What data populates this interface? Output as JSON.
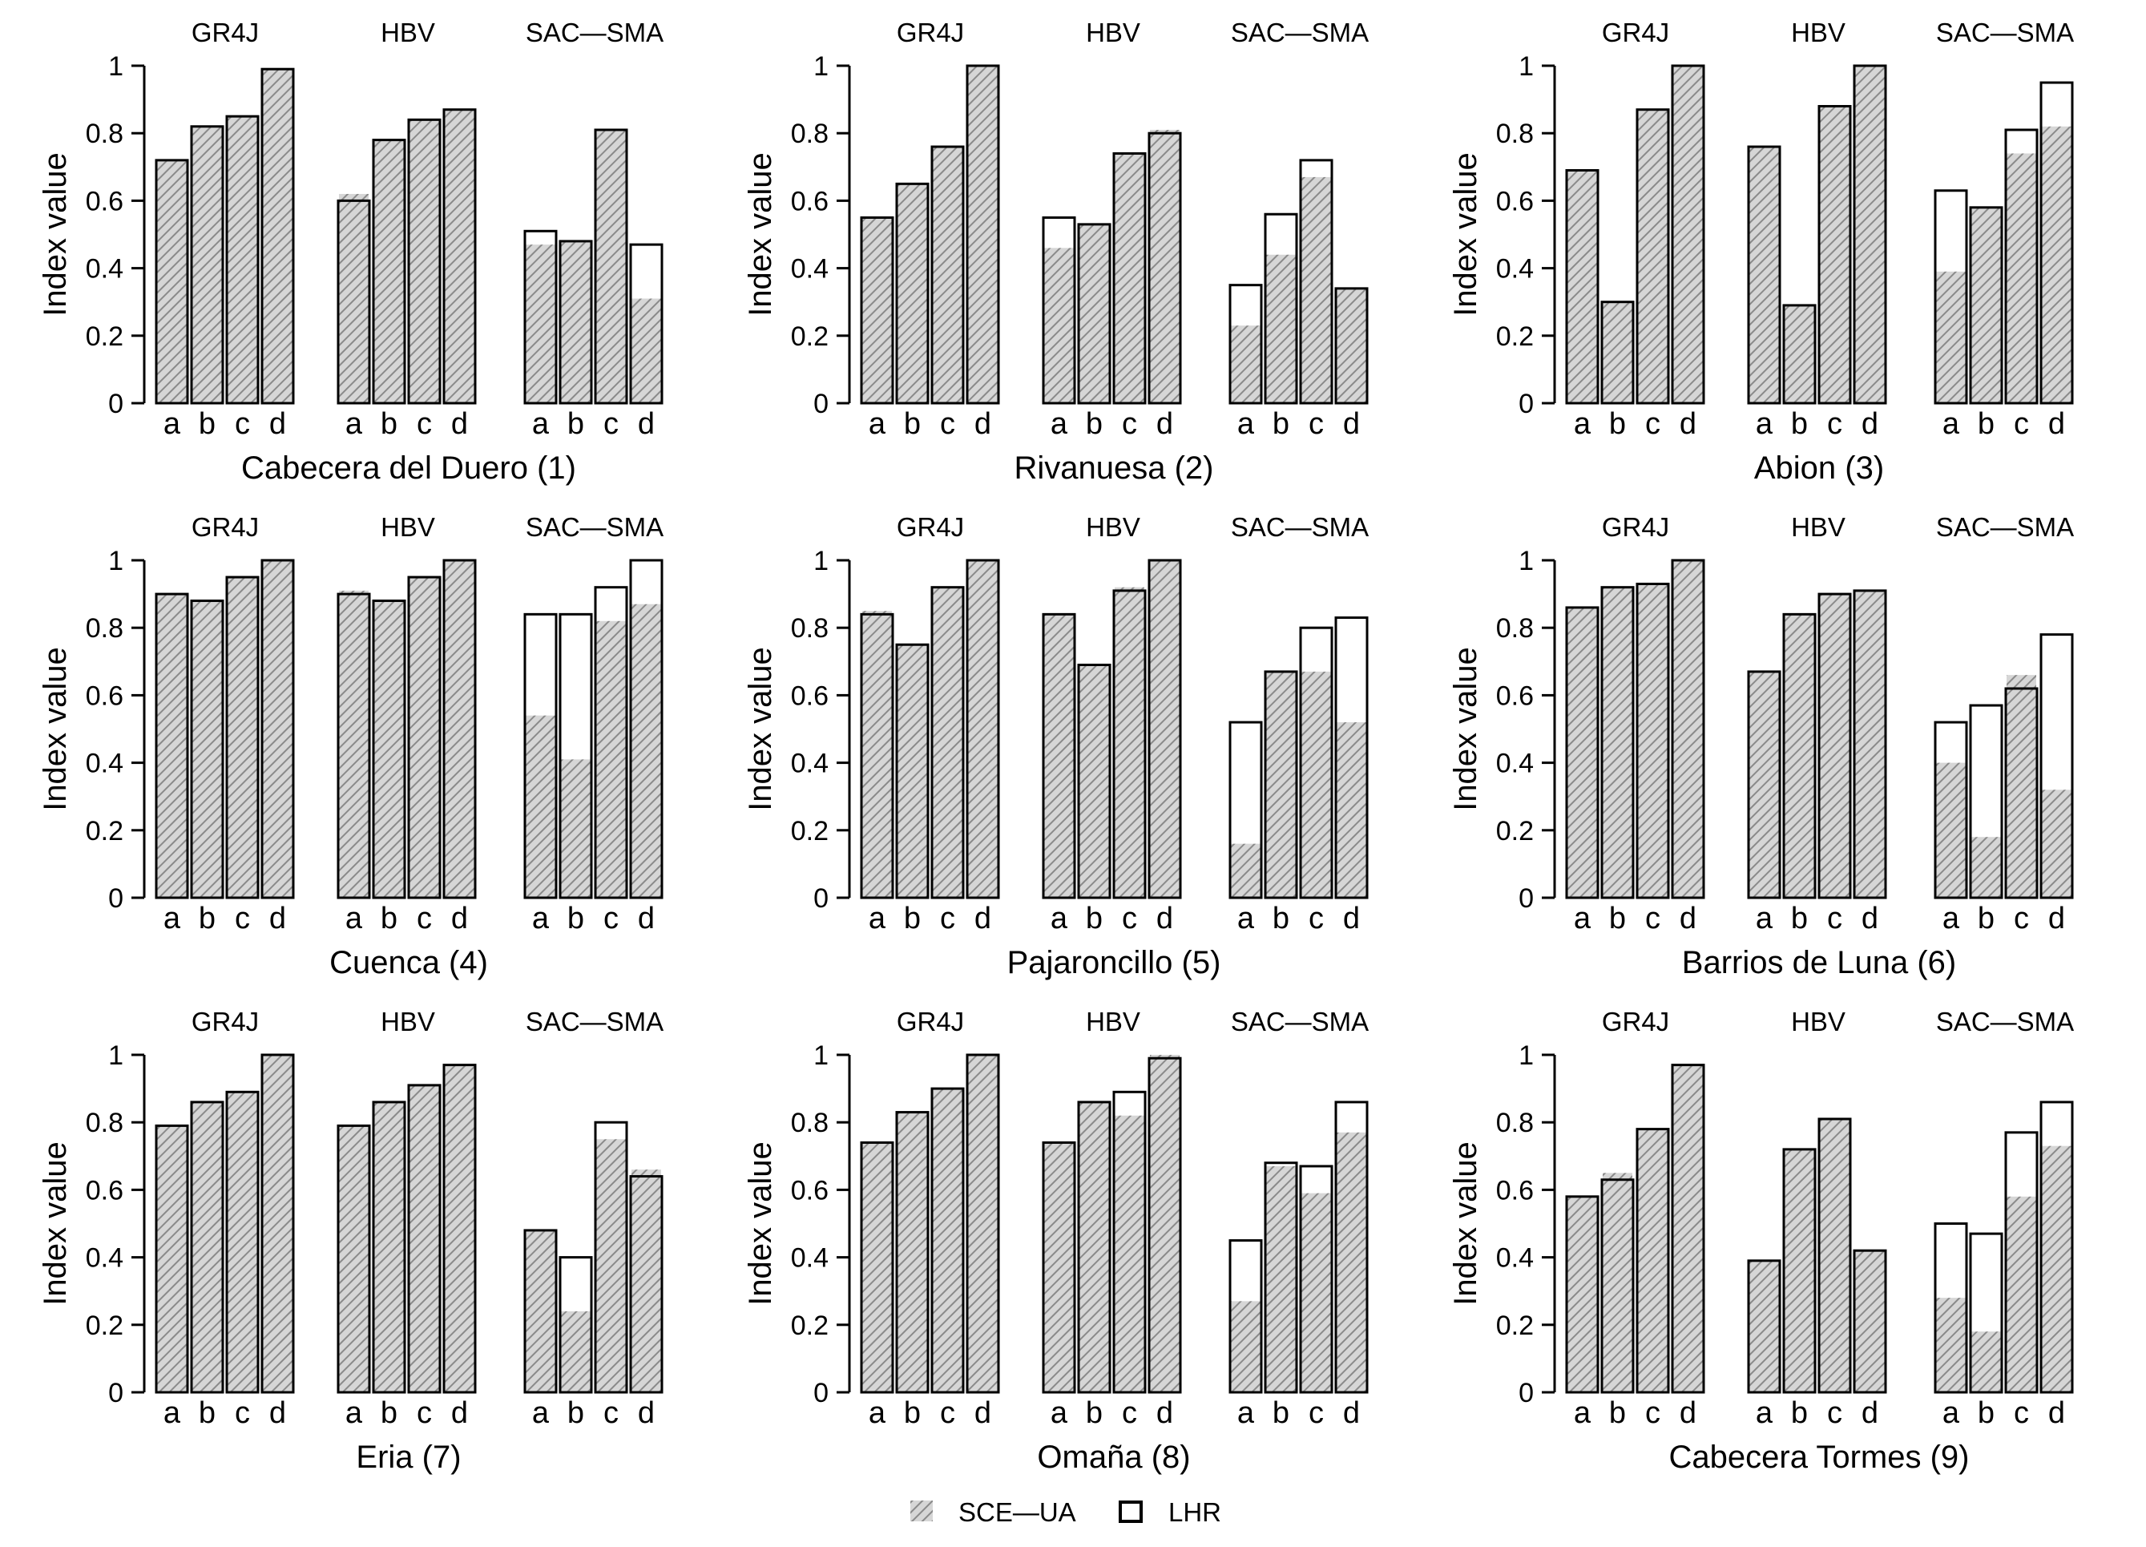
{
  "legend": {
    "sce_label": "SCE—UA",
    "lhr_label": "LHR",
    "sce_color": "#9e9e9e",
    "lhr_color": "#000000"
  },
  "chart_data": {
    "type": "bar",
    "ylabel": "Index value",
    "ylim": [
      0,
      1
    ],
    "yticks": [
      0,
      0.2,
      0.4,
      0.6,
      0.8,
      1
    ],
    "ytick_labels": [
      "0",
      "0.2",
      "0.4",
      "0.6",
      "0.8",
      "1"
    ],
    "categories": [
      "a",
      "b",
      "c",
      "d"
    ],
    "model_labels": [
      "GR4J",
      "HBV",
      "SAC—SMA"
    ],
    "series_names": [
      "SCE—UA",
      "LHR"
    ],
    "panels": [
      {
        "title": "Cabecera del Duero (1)",
        "models": [
          {
            "name": "GR4J",
            "sce": [
              0.72,
              0.82,
              0.85,
              0.99
            ],
            "lhr": [
              0.72,
              0.82,
              0.85,
              0.99
            ]
          },
          {
            "name": "HBV",
            "sce": [
              0.62,
              0.78,
              0.84,
              0.87
            ],
            "lhr": [
              0.6,
              0.78,
              0.84,
              0.87
            ]
          },
          {
            "name": "SAC—SMA",
            "sce": [
              0.47,
              0.48,
              0.81,
              0.31
            ],
            "lhr": [
              0.51,
              0.48,
              0.81,
              0.47
            ]
          }
        ]
      },
      {
        "title": "Rivanuesa (2)",
        "models": [
          {
            "name": "GR4J",
            "sce": [
              0.55,
              0.65,
              0.76,
              1.0
            ],
            "lhr": [
              0.55,
              0.65,
              0.76,
              1.0
            ]
          },
          {
            "name": "HBV",
            "sce": [
              0.46,
              0.53,
              0.74,
              0.81
            ],
            "lhr": [
              0.55,
              0.53,
              0.74,
              0.8
            ]
          },
          {
            "name": "SAC—SMA",
            "sce": [
              0.23,
              0.44,
              0.67,
              0.34
            ],
            "lhr": [
              0.35,
              0.56,
              0.72,
              0.34
            ]
          }
        ]
      },
      {
        "title": "Abion (3)",
        "models": [
          {
            "name": "GR4J",
            "sce": [
              0.69,
              0.3,
              0.87,
              1.0
            ],
            "lhr": [
              0.69,
              0.3,
              0.87,
              1.0
            ]
          },
          {
            "name": "HBV",
            "sce": [
              0.76,
              0.29,
              0.88,
              1.0
            ],
            "lhr": [
              0.76,
              0.29,
              0.88,
              1.0
            ]
          },
          {
            "name": "SAC—SMA",
            "sce": [
              0.39,
              0.58,
              0.74,
              0.82
            ],
            "lhr": [
              0.63,
              0.58,
              0.81,
              0.95
            ]
          }
        ]
      },
      {
        "title": "Cuenca (4)",
        "models": [
          {
            "name": "GR4J",
            "sce": [
              0.9,
              0.88,
              0.95,
              1.0
            ],
            "lhr": [
              0.9,
              0.88,
              0.95,
              1.0
            ]
          },
          {
            "name": "HBV",
            "sce": [
              0.91,
              0.88,
              0.95,
              1.0
            ],
            "lhr": [
              0.9,
              0.88,
              0.95,
              1.0
            ]
          },
          {
            "name": "SAC—SMA",
            "sce": [
              0.54,
              0.41,
              0.82,
              0.87
            ],
            "lhr": [
              0.84,
              0.84,
              0.92,
              1.0
            ]
          }
        ]
      },
      {
        "title": "Pajaroncillo (5)",
        "models": [
          {
            "name": "GR4J",
            "sce": [
              0.85,
              0.75,
              0.92,
              1.0
            ],
            "lhr": [
              0.84,
              0.75,
              0.92,
              1.0
            ]
          },
          {
            "name": "HBV",
            "sce": [
              0.84,
              0.69,
              0.92,
              1.0
            ],
            "lhr": [
              0.84,
              0.69,
              0.91,
              1.0
            ]
          },
          {
            "name": "SAC—SMA",
            "sce": [
              0.16,
              0.67,
              0.67,
              0.52
            ],
            "lhr": [
              0.52,
              0.67,
              0.8,
              0.83
            ]
          }
        ]
      },
      {
        "title": "Barrios de Luna (6)",
        "models": [
          {
            "name": "GR4J",
            "sce": [
              0.86,
              0.92,
              0.93,
              1.0
            ],
            "lhr": [
              0.86,
              0.92,
              0.93,
              1.0
            ]
          },
          {
            "name": "HBV",
            "sce": [
              0.67,
              0.84,
              0.9,
              0.91
            ],
            "lhr": [
              0.67,
              0.84,
              0.9,
              0.91
            ]
          },
          {
            "name": "SAC—SMA",
            "sce": [
              0.4,
              0.18,
              0.66,
              0.32
            ],
            "lhr": [
              0.52,
              0.57,
              0.62,
              0.78
            ]
          }
        ]
      },
      {
        "title": "Eria (7)",
        "models": [
          {
            "name": "GR4J",
            "sce": [
              0.79,
              0.86,
              0.89,
              1.0
            ],
            "lhr": [
              0.79,
              0.86,
              0.89,
              1.0
            ]
          },
          {
            "name": "HBV",
            "sce": [
              0.79,
              0.86,
              0.91,
              0.97
            ],
            "lhr": [
              0.79,
              0.86,
              0.91,
              0.97
            ]
          },
          {
            "name": "SAC—SMA",
            "sce": [
              0.48,
              0.24,
              0.75,
              0.66
            ],
            "lhr": [
              0.48,
              0.4,
              0.8,
              0.64
            ]
          }
        ]
      },
      {
        "title": "Omaña (8)",
        "models": [
          {
            "name": "GR4J",
            "sce": [
              0.74,
              0.83,
              0.9,
              1.0
            ],
            "lhr": [
              0.74,
              0.83,
              0.9,
              1.0
            ]
          },
          {
            "name": "HBV",
            "sce": [
              0.74,
              0.86,
              0.82,
              1.0
            ],
            "lhr": [
              0.74,
              0.86,
              0.89,
              0.99
            ]
          },
          {
            "name": "SAC—SMA",
            "sce": [
              0.27,
              0.67,
              0.59,
              0.77
            ],
            "lhr": [
              0.45,
              0.68,
              0.67,
              0.86
            ]
          }
        ]
      },
      {
        "title": "Cabecera Tormes (9)",
        "models": [
          {
            "name": "GR4J",
            "sce": [
              0.58,
              0.65,
              0.78,
              0.97
            ],
            "lhr": [
              0.58,
              0.63,
              0.78,
              0.97
            ]
          },
          {
            "name": "HBV",
            "sce": [
              0.39,
              0.72,
              0.81,
              0.42
            ],
            "lhr": [
              0.39,
              0.72,
              0.81,
              0.42
            ]
          },
          {
            "name": "SAC—SMA",
            "sce": [
              0.28,
              0.18,
              0.58,
              0.73
            ],
            "lhr": [
              0.5,
              0.47,
              0.77,
              0.86
            ]
          }
        ]
      }
    ]
  }
}
